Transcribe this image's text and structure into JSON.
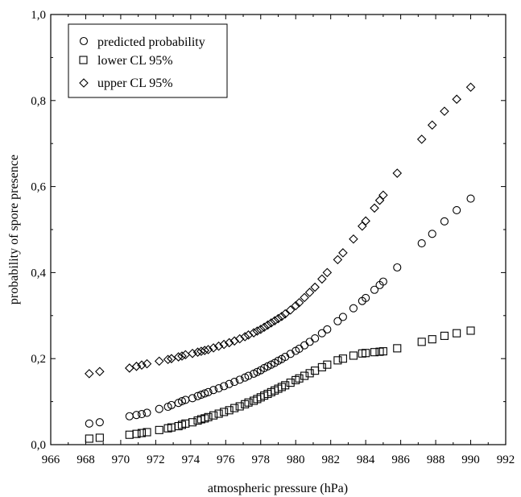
{
  "chart_data": {
    "type": "scatter",
    "title": "",
    "xlabel": "atmospheric pressure (hPa)",
    "ylabel": "probability of spore presence",
    "xlim": [
      966,
      992
    ],
    "ylim": [
      0,
      1
    ],
    "xticks": [
      "966",
      "968",
      "970",
      "972",
      "974",
      "976",
      "978",
      "980",
      "982",
      "984",
      "986",
      "988",
      "990",
      "992"
    ],
    "yticks": [
      "0,0",
      "0,2",
      "0,4",
      "0,6",
      "0,8",
      "1,0"
    ],
    "xtick_values": [
      966,
      968,
      970,
      972,
      974,
      976,
      978,
      980,
      982,
      984,
      986,
      988,
      990,
      992
    ],
    "ytick_values": [
      0,
      0.2,
      0.4,
      0.6,
      0.8,
      1.0
    ],
    "grid": false,
    "legend_position": "top-left",
    "series": [
      {
        "name": "predicted probability",
        "marker": "circle",
        "x": [
          968.2,
          968.8,
          970.5,
          970.9,
          971.2,
          971.5,
          972.2,
          972.7,
          972.9,
          973.3,
          973.5,
          973.7,
          974.1,
          974.4,
          974.6,
          974.8,
          975.0,
          975.3,
          975.6,
          975.9,
          976.2,
          976.5,
          976.8,
          977.1,
          977.3,
          977.6,
          977.8,
          978.0,
          978.2,
          978.4,
          978.6,
          978.8,
          979.0,
          979.2,
          979.4,
          979.7,
          980.0,
          980.2,
          980.5,
          980.8,
          981.1,
          981.5,
          981.8,
          982.4,
          982.7,
          983.3,
          983.8,
          984.0,
          984.5,
          984.8,
          985.0,
          985.8,
          987.2,
          987.8,
          988.5,
          989.2,
          990.0
        ],
        "y": [
          0.049,
          0.052,
          0.066,
          0.069,
          0.071,
          0.074,
          0.083,
          0.088,
          0.092,
          0.097,
          0.101,
          0.104,
          0.108,
          0.113,
          0.116,
          0.119,
          0.122,
          0.127,
          0.131,
          0.136,
          0.141,
          0.146,
          0.151,
          0.156,
          0.16,
          0.165,
          0.169,
          0.173,
          0.178,
          0.182,
          0.186,
          0.19,
          0.195,
          0.199,
          0.204,
          0.211,
          0.218,
          0.223,
          0.231,
          0.239,
          0.247,
          0.259,
          0.268,
          0.287,
          0.297,
          0.317,
          0.334,
          0.341,
          0.36,
          0.371,
          0.379,
          0.412,
          0.468,
          0.49,
          0.519,
          0.545,
          0.572
        ]
      },
      {
        "name": "lower CL 95%",
        "marker": "square",
        "x": [
          968.2,
          968.8,
          970.5,
          970.9,
          971.2,
          971.5,
          972.2,
          972.7,
          972.9,
          973.3,
          973.5,
          973.7,
          974.1,
          974.4,
          974.6,
          974.8,
          975.0,
          975.3,
          975.6,
          975.9,
          976.2,
          976.5,
          976.8,
          977.1,
          977.3,
          977.6,
          977.8,
          978.0,
          978.2,
          978.4,
          978.6,
          978.8,
          979.0,
          979.2,
          979.4,
          979.7,
          980.0,
          980.2,
          980.5,
          980.8,
          981.1,
          981.5,
          981.8,
          982.4,
          982.7,
          983.3,
          983.8,
          984.0,
          984.5,
          984.8,
          985.0,
          985.8,
          987.2,
          987.8,
          988.5,
          989.2,
          990.0
        ],
        "y": [
          0.014,
          0.016,
          0.023,
          0.025,
          0.027,
          0.029,
          0.034,
          0.038,
          0.04,
          0.043,
          0.046,
          0.049,
          0.052,
          0.056,
          0.059,
          0.061,
          0.064,
          0.068,
          0.072,
          0.076,
          0.08,
          0.085,
          0.089,
          0.094,
          0.098,
          0.102,
          0.106,
          0.11,
          0.114,
          0.118,
          0.122,
          0.126,
          0.13,
          0.134,
          0.138,
          0.144,
          0.15,
          0.154,
          0.16,
          0.166,
          0.172,
          0.18,
          0.186,
          0.196,
          0.2,
          0.207,
          0.212,
          0.213,
          0.215,
          0.216,
          0.217,
          0.224,
          0.239,
          0.245,
          0.253,
          0.259,
          0.265
        ]
      },
      {
        "name": "upper CL 95%",
        "marker": "diamond",
        "x": [
          968.2,
          968.8,
          970.5,
          970.9,
          971.2,
          971.5,
          972.2,
          972.7,
          972.9,
          973.3,
          973.5,
          973.7,
          974.1,
          974.4,
          974.6,
          974.8,
          975.0,
          975.3,
          975.6,
          975.9,
          976.2,
          976.5,
          976.8,
          977.1,
          977.3,
          977.6,
          977.8,
          978.0,
          978.2,
          978.4,
          978.6,
          978.8,
          979.0,
          979.2,
          979.4,
          979.7,
          980.0,
          980.2,
          980.5,
          980.8,
          981.1,
          981.5,
          981.8,
          982.4,
          982.7,
          983.3,
          983.8,
          984.0,
          984.5,
          984.8,
          985.0,
          985.8,
          987.2,
          987.8,
          988.5,
          989.2,
          990.0
        ],
        "y": [
          0.165,
          0.17,
          0.178,
          0.182,
          0.185,
          0.188,
          0.194,
          0.198,
          0.2,
          0.204,
          0.206,
          0.209,
          0.212,
          0.215,
          0.217,
          0.219,
          0.221,
          0.225,
          0.229,
          0.233,
          0.237,
          0.241,
          0.246,
          0.251,
          0.255,
          0.26,
          0.264,
          0.268,
          0.273,
          0.278,
          0.283,
          0.288,
          0.293,
          0.298,
          0.304,
          0.313,
          0.323,
          0.33,
          0.342,
          0.354,
          0.366,
          0.385,
          0.4,
          0.43,
          0.446,
          0.478,
          0.508,
          0.52,
          0.55,
          0.568,
          0.58,
          0.631,
          0.71,
          0.743,
          0.775,
          0.803,
          0.831
        ]
      }
    ]
  }
}
